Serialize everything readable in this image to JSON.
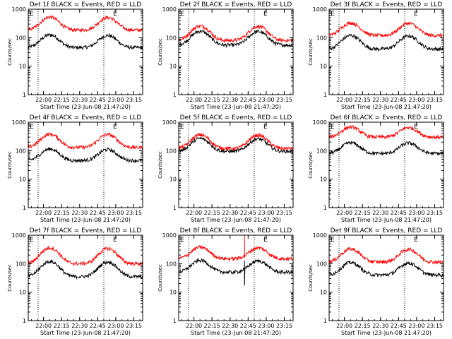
{
  "chart_data": [
    {
      "type": "line",
      "title": "Det 1f BLACK = Events, RED = LLD",
      "xlabel": "Start Time (23-Jun-08 21:47:20)",
      "ylabel": "Counts/sec",
      "yscale": "log",
      "ylim": [
        1,
        1000
      ],
      "yticks": [
        "1",
        "10",
        "100",
        "1000"
      ],
      "xticks": [
        "22:00",
        "22:15",
        "22:30",
        "22:45",
        "23:00",
        "23:15"
      ],
      "marker_letters": [
        "E",
        "E"
      ],
      "series": [
        {
          "color": "#000000",
          "baseline": 45,
          "peak1": 125,
          "peak2": 120,
          "spike": null
        },
        {
          "color": "#ff0000",
          "baseline": 185,
          "peak1": 530,
          "peak2": 510,
          "spike": null
        }
      ]
    },
    {
      "type": "line",
      "title": "Det 2f BLACK = Events, RED = LLD",
      "xlabel": "Start Time (23-Jun-08 21:47:20)",
      "ylabel": "Counts/sec",
      "yscale": "log",
      "ylim": [
        1,
        1000
      ],
      "yticks": [
        "1",
        "10",
        "100",
        "1000"
      ],
      "xticks": [
        "22:00",
        "22:15",
        "22:30",
        "22:45",
        "23:00",
        "23:15"
      ],
      "marker_letters": [
        "E",
        "E"
      ],
      "series": [
        {
          "color": "#000000",
          "baseline": 55,
          "peak1": 170,
          "peak2": 165,
          "spike": null
        },
        {
          "color": "#ff0000",
          "baseline": 80,
          "peak1": 260,
          "peak2": 250,
          "spike": null
        }
      ]
    },
    {
      "type": "line",
      "title": "Det 3f BLACK = Events, RED = LLD",
      "xlabel": "Start Time (23-Jun-08 21:47:20)",
      "ylabel": "Counts/sec",
      "yscale": "log",
      "ylim": [
        1,
        1000
      ],
      "yticks": [
        "1",
        "10",
        "100",
        "1000"
      ],
      "xticks": [
        "22:00",
        "22:15",
        "22:30",
        "22:45",
        "23:00",
        "23:15"
      ],
      "marker_letters": [
        "E",
        "E"
      ],
      "series": [
        {
          "color": "#000000",
          "baseline": 40,
          "peak1": 120,
          "peak2": 115,
          "spike": null
        },
        {
          "color": "#ff0000",
          "baseline": 120,
          "peak1": 330,
          "peak2": 320,
          "spike": null
        }
      ]
    },
    {
      "type": "line",
      "title": "Det 4f BLACK = Events, RED = LLD",
      "xlabel": "Start Time (23-Jun-08 21:47:20)",
      "ylabel": "Counts/sec",
      "yscale": "log",
      "ylim": [
        1,
        1000
      ],
      "yticks": [
        "1",
        "10",
        "100",
        "1000"
      ],
      "xticks": [
        "22:00",
        "22:15",
        "22:30",
        "22:45",
        "23:00",
        "23:15"
      ],
      "marker_letters": [
        "E",
        "E"
      ],
      "series": [
        {
          "color": "#000000",
          "baseline": 45,
          "peak1": 115,
          "peak2": 110,
          "spike": null
        },
        {
          "color": "#ff0000",
          "baseline": 130,
          "peak1": 380,
          "peak2": 370,
          "spike": null
        }
      ]
    },
    {
      "type": "line",
      "title": "Det 5f BLACK = Events, RED = LLD",
      "xlabel": "Start Time (23-Jun-08 21:47:20)",
      "ylabel": "Counts/sec",
      "yscale": "log",
      "ylim": [
        1,
        1000
      ],
      "yticks": [
        "1",
        "10",
        "100",
        "1000"
      ],
      "xticks": [
        "22:00",
        "22:15",
        "22:30",
        "22:45",
        "23:00",
        "23:15"
      ],
      "marker_letters": [
        "E",
        "E"
      ],
      "series": [
        {
          "color": "#000000",
          "baseline": 95,
          "peak1": 270,
          "peak2": 260,
          "spike": null
        },
        {
          "color": "#ff0000",
          "baseline": 120,
          "peak1": 360,
          "peak2": 350,
          "spike": null
        }
      ]
    },
    {
      "type": "line",
      "title": "Det 6f BLACK = Events, RED = LLD",
      "xlabel": "Start Time (23-Jun-08 21:47:20)",
      "ylabel": "Counts/sec",
      "yscale": "log",
      "ylim": [
        1,
        1000
      ],
      "yticks": [
        "1",
        "10",
        "100",
        "1000"
      ],
      "xticks": [
        "22:00",
        "22:15",
        "22:30",
        "22:45",
        "23:00",
        "23:15"
      ],
      "marker_letters": [
        "E",
        "E"
      ],
      "series": [
        {
          "color": "#000000",
          "baseline": 80,
          "peak1": 190,
          "peak2": 185,
          "spike": null
        },
        {
          "color": "#ff0000",
          "baseline": 300,
          "peak1": 680,
          "peak2": 650,
          "spike": null
        }
      ]
    },
    {
      "type": "line",
      "title": "Det 7f BLACK = Events, RED = LLD",
      "xlabel": "Start Time (23-Jun-08 21:47:20)",
      "ylabel": "Counts/sec",
      "yscale": "log",
      "ylim": [
        1,
        1000
      ],
      "yticks": [
        "1",
        "10",
        "100",
        "1000"
      ],
      "xticks": [
        "22:00",
        "22:15",
        "22:30",
        "22:45",
        "23:00",
        "23:15"
      ],
      "marker_letters": [
        "E",
        "E"
      ],
      "series": [
        {
          "color": "#000000",
          "baseline": 35,
          "peak1": 120,
          "peak2": 115,
          "spike": null
        },
        {
          "color": "#ff0000",
          "baseline": 100,
          "peak1": 360,
          "peak2": 340,
          "spike": null
        }
      ]
    },
    {
      "type": "line",
      "title": "Det 8f BLACK = Events, RED = LLD",
      "xlabel": "Start Time (23-Jun-08 21:47:20)",
      "ylabel": "Counts/sec",
      "yscale": "log",
      "ylim": [
        1,
        1000
      ],
      "yticks": [
        "1",
        "10",
        "100",
        "1000"
      ],
      "xticks": [
        "22:00",
        "22:15",
        "22:30",
        "22:45",
        "23:00",
        "23:15"
      ],
      "marker_letters": [
        "E",
        "E"
      ],
      "series": [
        {
          "color": "#000000",
          "baseline": 50,
          "peak1": 130,
          "peak2": 125,
          "spike": {
            "time": "22:42",
            "low": 17,
            "high": 130
          }
        },
        {
          "color": "#ff0000",
          "baseline": 150,
          "peak1": 380,
          "peak2": 360,
          "spike": {
            "time": "22:42",
            "low": 160,
            "high": 1000
          }
        }
      ]
    },
    {
      "type": "line",
      "title": "Det 9f BLACK = Events, RED = LLD",
      "xlabel": "Start Time (23-Jun-08 21:47:20)",
      "ylabel": "Counts/sec",
      "yscale": "log",
      "ylim": [
        1,
        1000
      ],
      "yticks": [
        "1",
        "10",
        "100",
        "1000"
      ],
      "xticks": [
        "22:00",
        "22:15",
        "22:30",
        "22:45",
        "23:00",
        "23:15"
      ],
      "marker_letters": [
        "E",
        "E"
      ],
      "series": [
        {
          "color": "#000000",
          "baseline": 40,
          "peak1": 110,
          "peak2": 105,
          "spike": null
        },
        {
          "color": "#ff0000",
          "baseline": 115,
          "peak1": 330,
          "peak2": 320,
          "spike": null
        }
      ]
    }
  ]
}
